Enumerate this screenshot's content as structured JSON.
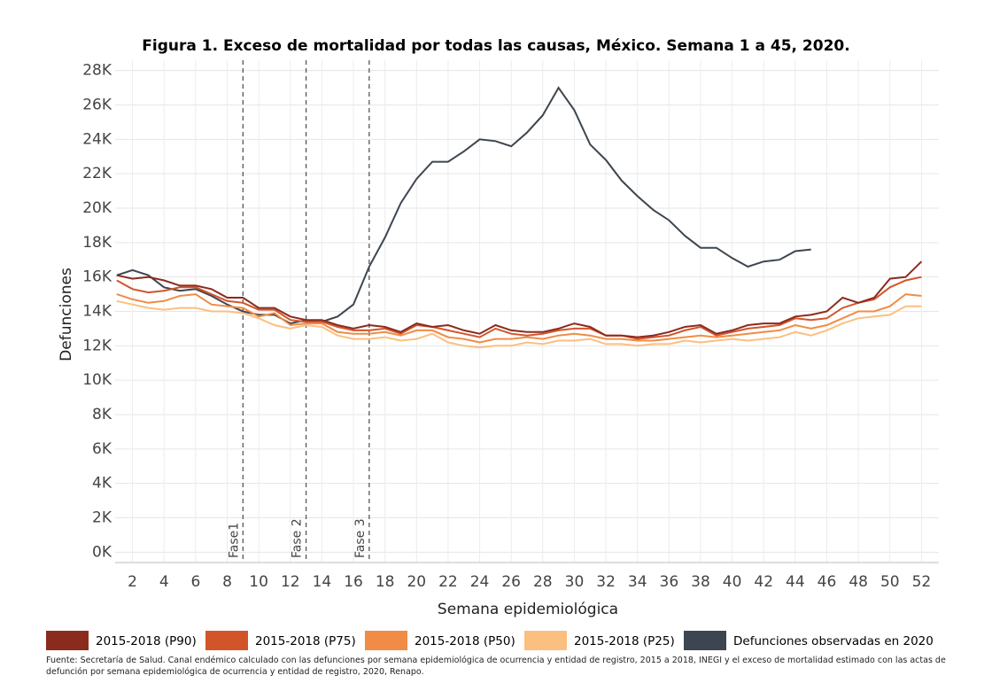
{
  "chart_data": {
    "type": "line",
    "title": "Figura 1. Exceso de mortalidad por todas las causas, México. Semana 1 a 45, 2020.",
    "x_label": "Semana epidemiológica",
    "y_label": "Defunciones",
    "x": [
      1,
      2,
      3,
      4,
      5,
      6,
      7,
      8,
      9,
      10,
      11,
      12,
      13,
      14,
      15,
      16,
      17,
      18,
      19,
      20,
      21,
      22,
      23,
      24,
      25,
      26,
      27,
      28,
      29,
      30,
      31,
      32,
      33,
      34,
      35,
      36,
      37,
      38,
      39,
      40,
      41,
      42,
      43,
      44,
      45,
      46,
      47,
      48,
      49,
      50,
      51,
      52
    ],
    "xlim": [
      0.9,
      53.1
    ],
    "xticks": [
      2,
      4,
      6,
      8,
      10,
      12,
      14,
      16,
      18,
      20,
      22,
      24,
      26,
      28,
      30,
      32,
      34,
      36,
      38,
      40,
      42,
      44,
      46,
      48,
      50,
      52
    ],
    "ylim": [
      -600,
      28600
    ],
    "yticks": [
      {
        "value": 0,
        "label": "0K"
      },
      {
        "value": 2000,
        "label": "2K"
      },
      {
        "value": 4000,
        "label": "4K"
      },
      {
        "value": 6000,
        "label": "6K"
      },
      {
        "value": 8000,
        "label": "8K"
      },
      {
        "value": 10000,
        "label": "10K"
      },
      {
        "value": 12000,
        "label": "12K"
      },
      {
        "value": 14000,
        "label": "14K"
      },
      {
        "value": 16000,
        "label": "16K"
      },
      {
        "value": 18000,
        "label": "18K"
      },
      {
        "value": 20000,
        "label": "20K"
      },
      {
        "value": 22000,
        "label": "22K"
      },
      {
        "value": 24000,
        "label": "24K"
      },
      {
        "value": 26000,
        "label": "26K"
      },
      {
        "value": 28000,
        "label": "28K"
      }
    ],
    "grid": true,
    "annotations": [
      {
        "x": 9,
        "label": "Fase1"
      },
      {
        "x": 13,
        "label": "Fase 2"
      },
      {
        "x": 17,
        "label": "Fase 3"
      }
    ],
    "series": [
      {
        "name": "2015-2018 (P90)",
        "color": "#8b2b1e",
        "values": [
          16100,
          15900,
          16000,
          15800,
          15500,
          15500,
          15300,
          14800,
          14800,
          14200,
          14200,
          13700,
          13500,
          13500,
          13200,
          13000,
          13200,
          13100,
          12800,
          13300,
          13100,
          13200,
          12900,
          12700,
          13200,
          12900,
          12800,
          12800,
          13000,
          13300,
          13100,
          12600,
          12600,
          12500,
          12600,
          12800,
          13100,
          13200,
          12700,
          12900,
          13200,
          13300,
          13300,
          13700,
          13800,
          14000,
          14800,
          14500,
          14800,
          15900,
          16000,
          16900
        ]
      },
      {
        "name": "2015-2018 (P75)",
        "color": "#d2552a",
        "values": [
          15800,
          15300,
          15100,
          15200,
          15400,
          15400,
          15000,
          14600,
          14500,
          14100,
          14100,
          13500,
          13400,
          13400,
          13100,
          12900,
          12900,
          13000,
          12700,
          13200,
          13100,
          12900,
          12700,
          12500,
          13000,
          12700,
          12600,
          12700,
          12900,
          13000,
          13000,
          12600,
          12600,
          12400,
          12500,
          12600,
          12900,
          13100,
          12600,
          12800,
          13000,
          13100,
          13200,
          13600,
          13500,
          13600,
          14200,
          14500,
          14700,
          15400,
          15800,
          16000
        ]
      },
      {
        "name": "2015-2018 (P50)",
        "color": "#f08c45",
        "values": [
          15000,
          14700,
          14500,
          14600,
          14900,
          15000,
          14400,
          14300,
          14200,
          13700,
          13900,
          13200,
          13300,
          13300,
          12800,
          12700,
          12700,
          12800,
          12600,
          12900,
          12900,
          12500,
          12400,
          12200,
          12400,
          12400,
          12500,
          12400,
          12600,
          12700,
          12600,
          12400,
          12400,
          12300,
          12300,
          12400,
          12500,
          12600,
          12500,
          12600,
          12700,
          12800,
          12900,
          13200,
          13000,
          13200,
          13600,
          14000,
          14000,
          14300,
          15000,
          14900
        ]
      },
      {
        "name": "2015-2018 (P25)",
        "color": "#fbbf80",
        "values": [
          14600,
          14400,
          14200,
          14100,
          14200,
          14200,
          14000,
          14000,
          13900,
          13600,
          13200,
          13000,
          13200,
          13100,
          12600,
          12400,
          12400,
          12500,
          12300,
          12400,
          12700,
          12200,
          12000,
          11900,
          12000,
          12000,
          12200,
          12100,
          12300,
          12300,
          12400,
          12100,
          12100,
          12000,
          12100,
          12100,
          12300,
          12200,
          12300,
          12400,
          12300,
          12400,
          12500,
          12800,
          12600,
          12900,
          13300,
          13600,
          13700,
          13800,
          14300,
          14300
        ]
      },
      {
        "name": "Defunciones observadas en 2020",
        "color": "#3d4650",
        "values": [
          16100,
          16400,
          16100,
          15400,
          15200,
          15300,
          14900,
          14400,
          14000,
          13800,
          13800,
          13300,
          13500,
          13400,
          13700,
          14400,
          16600,
          18300,
          20300,
          21700,
          22700,
          22700,
          23300,
          24000,
          23900,
          23600,
          24400,
          25400,
          27000,
          25700,
          23700,
          22800,
          21600,
          20700,
          19900,
          19300,
          18400,
          17700,
          17700,
          17100,
          16600,
          16900,
          17000,
          17500,
          17600,
          null,
          null,
          null,
          null,
          null,
          null,
          null
        ]
      }
    ],
    "source": "Fuente: Secretaría de Salud. Canal endémico calculado con las defunciones por semana epidemiológica de ocurrencia y entidad de registro, 2015 a 2018, INEGI y el exceso de mortalidad estimado con las actas de defunción por semana epidemiológica de ocurrencia y entidad de registro, 2020, Renapo."
  }
}
